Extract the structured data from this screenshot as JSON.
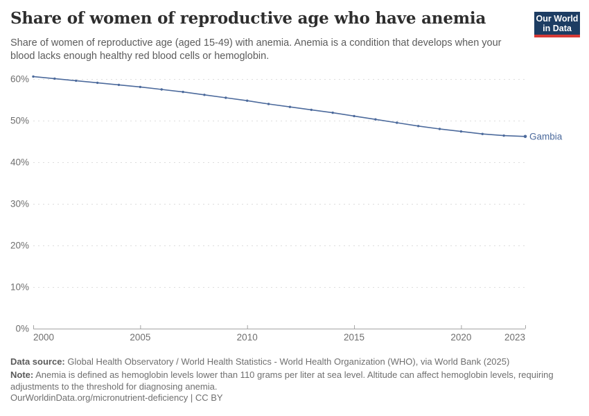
{
  "header": {
    "title": "Share of women of reproductive age who have anemia",
    "subtitle": "Share of women of reproductive age (aged 15-49) with anemia. Anemia is a condition that develops when your blood lacks enough healthy red blood cells or hemoglobin.",
    "logo": {
      "line1": "Our World",
      "line2": "in Data",
      "bg_color": "#1d3d63",
      "stripe_color": "#d73a36"
    }
  },
  "chart_data": {
    "type": "line",
    "title": "Share of women of reproductive age who have anemia",
    "xlabel": "",
    "ylabel": "",
    "xlim": [
      2000,
      2023
    ],
    "ylim": [
      0,
      60
    ],
    "grid": "dashed-horizontal",
    "legend_position": "end-of-line-label",
    "x_ticks": [
      {
        "value": 2000,
        "label": "2000"
      },
      {
        "value": 2005,
        "label": "2005"
      },
      {
        "value": 2010,
        "label": "2010"
      },
      {
        "value": 2015,
        "label": "2015"
      },
      {
        "value": 2020,
        "label": "2020"
      },
      {
        "value": 2023,
        "label": "2023"
      }
    ],
    "y_ticks": [
      {
        "value": 0,
        "label": "0%"
      },
      {
        "value": 10,
        "label": "10%"
      },
      {
        "value": 20,
        "label": "20%"
      },
      {
        "value": 30,
        "label": "30%"
      },
      {
        "value": 40,
        "label": "40%"
      },
      {
        "value": 50,
        "label": "50%"
      },
      {
        "value": 60,
        "label": "60%"
      }
    ],
    "x": [
      2000,
      2001,
      2002,
      2003,
      2004,
      2005,
      2006,
      2007,
      2008,
      2009,
      2010,
      2011,
      2012,
      2013,
      2014,
      2015,
      2016,
      2017,
      2018,
      2019,
      2020,
      2021,
      2022,
      2023
    ],
    "series": [
      {
        "name": "Gambia",
        "color": "#4c6a9c",
        "values": [
          60.6,
          60.1,
          59.6,
          59.1,
          58.6,
          58.1,
          57.5,
          56.9,
          56.2,
          55.5,
          54.8,
          54.0,
          53.3,
          52.6,
          51.9,
          51.1,
          50.3,
          49.5,
          48.7,
          48.0,
          47.4,
          46.8,
          46.4,
          46.2
        ]
      }
    ],
    "colors": {
      "grid": "#dcdcdc",
      "axis": "#a3a3a3",
      "tick_label": "#6e6e6e"
    }
  },
  "footer": {
    "source_label": "Data source:",
    "source_text": " Global Health Observatory / World Health Statistics - World Health Organization (WHO), via World Bank (2025)",
    "note_label": "Note:",
    "note_text": " Anemia is defined as hemoglobin levels lower than 110 grams per liter at sea level. Altitude can affect hemoglobin levels, requiring adjustments to the threshold for diagnosing anemia.",
    "url_text": "OurWorldinData.org/micronutrient-deficiency | CC BY"
  }
}
